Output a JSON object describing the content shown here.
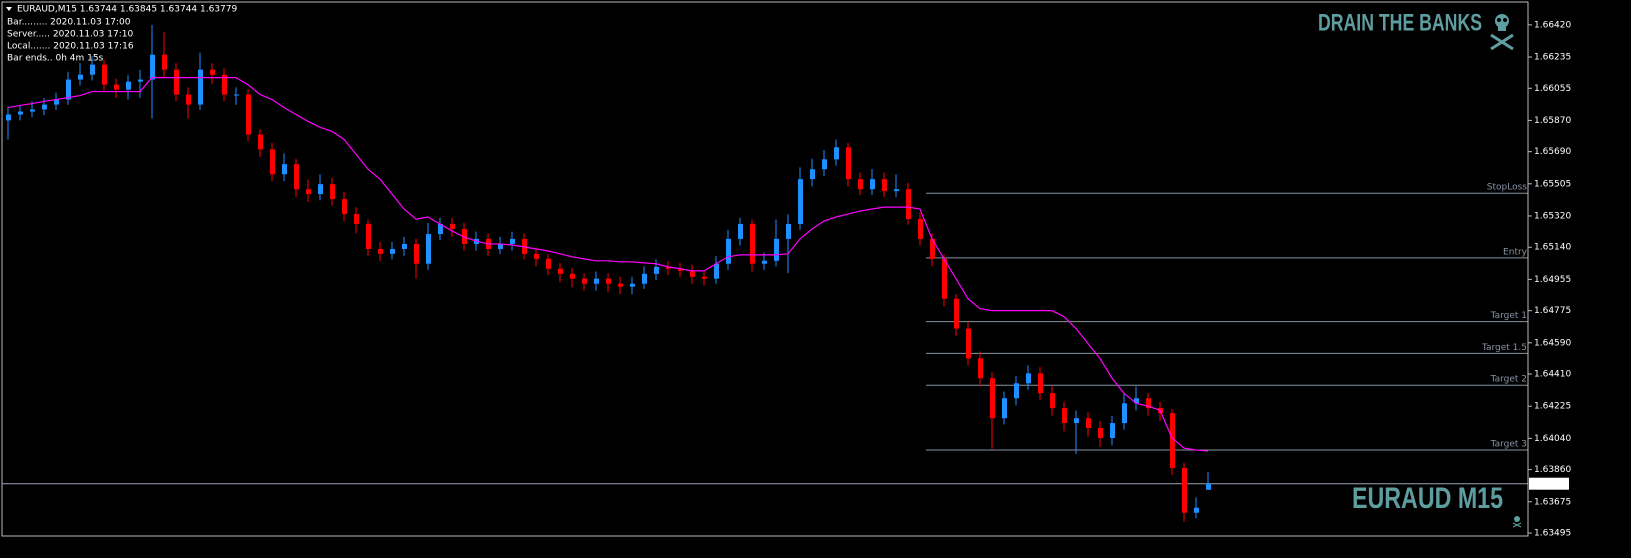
{
  "header": {
    "symbol_line": "EURAUD,M15  1.63744 1.63845 1.63744 1.63779",
    "info": [
      "Bar......... 2020.11.03 17:00",
      "Server..... 2020.11.03 17:10",
      "Local....... 2020.11.03 17:16",
      "Bar ends.. 0h 4m 15s"
    ]
  },
  "watermark": "DRAIN THE BANKS",
  "chart_label": "EURAUD M15",
  "chart_data": {
    "type": "candlestick",
    "ylim": [
      1.63478,
      1.66563
    ],
    "yticks": [
      {
        "value": 1.6642,
        "label": "1.66420"
      },
      {
        "value": 1.66235,
        "label": "1.66235"
      },
      {
        "value": 1.66055,
        "label": "1.66055"
      },
      {
        "value": 1.6587,
        "label": "1.65870"
      },
      {
        "value": 1.6569,
        "label": "1.65690"
      },
      {
        "value": 1.65505,
        "label": "1.65505"
      },
      {
        "value": 1.6532,
        "label": "1.65320"
      },
      {
        "value": 1.6514,
        "label": "1.65140"
      },
      {
        "value": 1.64955,
        "label": "1.64955"
      },
      {
        "value": 1.64775,
        "label": "1.64775"
      },
      {
        "value": 1.6459,
        "label": "1.64590"
      },
      {
        "value": 1.6441,
        "label": "1.64410"
      },
      {
        "value": 1.64225,
        "label": "1.64225"
      },
      {
        "value": 1.6404,
        "label": "1.64040"
      },
      {
        "value": 1.6386,
        "label": "1.63860"
      },
      {
        "value": 1.63675,
        "label": "1.63675"
      },
      {
        "value": 1.63495,
        "label": "1.63495"
      }
    ],
    "up_color": "#1e90ff",
    "down_color": "#ff0000",
    "grid": false,
    "open": [
      1.6587,
      1.65904,
      1.65921,
      1.65933,
      1.65961,
      1.6599,
      1.66105,
      1.66133,
      1.66191,
      1.66076,
      1.66047,
      1.66093,
      1.66105,
      1.66248,
      1.66162,
      1.66019,
      1.65961,
      1.66162,
      1.66133,
      1.66019,
      1.66019,
      1.65789,
      1.65703,
      1.6556,
      1.65618,
      1.65474,
      1.65446,
      1.65503,
      1.65417,
      1.65331,
      1.65274,
      1.6513,
      1.65102,
      1.6513,
      1.65159,
      1.65045,
      1.65216,
      1.65274,
      1.65245,
      1.65159,
      1.65188,
      1.6513,
      1.65159,
      1.65188,
      1.65102,
      1.65073,
      1.65016,
      1.64987,
      1.64959,
      1.6493,
      1.64959,
      1.6493,
      1.64913,
      1.6493,
      1.64987,
      1.65027,
      1.65016,
      1.65004,
      1.6497,
      1.64959,
      1.65045,
      1.65188,
      1.65274,
      1.65045,
      1.65062,
      1.65188,
      1.65274,
      1.65532,
      1.65589,
      1.65646,
      1.65715,
      1.65532,
      1.65474,
      1.65532,
      1.65463,
      1.65474,
      1.65302,
      1.65188,
      1.65073,
      1.64844,
      1.64672,
      1.645,
      1.64386,
      1.64156,
      1.64271,
      1.64357,
      1.64414,
      1.643,
      1.64214,
      1.64128,
      1.64156,
      1.64099,
      1.64042,
      1.64128,
      1.64242,
      1.64271,
      1.64214,
      1.64185,
      1.6387,
      1.63612,
      1.63744
    ],
    "high": [
      1.6595,
      1.6596,
      1.6598,
      1.66,
      1.6603,
      1.6615,
      1.662,
      1.6624,
      1.6622,
      1.6611,
      1.6613,
      1.6616,
      1.6642,
      1.6638,
      1.662,
      1.6606,
      1.6626,
      1.662,
      1.6617,
      1.6606,
      1.6605,
      1.6582,
      1.6574,
      1.6568,
      1.6565,
      1.6553,
      1.6556,
      1.6554,
      1.6546,
      1.6537,
      1.653,
      1.6517,
      1.6517,
      1.652,
      1.6519,
      1.6528,
      1.6531,
      1.6531,
      1.6528,
      1.6523,
      1.6522,
      1.652,
      1.6523,
      1.6522,
      1.6514,
      1.651,
      1.6505,
      1.6502,
      1.6499,
      1.65,
      1.6499,
      1.6497,
      1.6497,
      1.6503,
      1.6507,
      1.6506,
      1.6505,
      1.6504,
      1.65,
      1.6509,
      1.6524,
      1.6531,
      1.653,
      1.6511,
      1.653,
      1.6533,
      1.656,
      1.6565,
      1.657,
      1.6576,
      1.6574,
      1.6557,
      1.6559,
      1.6557,
      1.6556,
      1.6551,
      1.6534,
      1.6522,
      1.651,
      1.6487,
      1.6471,
      1.6454,
      1.6442,
      1.6431,
      1.644,
      1.6446,
      1.6445,
      1.6434,
      1.6425,
      1.642,
      1.6419,
      1.6414,
      1.6417,
      1.643,
      1.6434,
      1.643,
      1.6425,
      1.6421,
      1.639,
      1.637,
      1.63845
    ],
    "low": [
      1.6576,
      1.6587,
      1.6589,
      1.659,
      1.6593,
      1.6596,
      1.6607,
      1.661,
      1.6604,
      1.66,
      1.6599,
      1.66,
      1.6588,
      1.6612,
      1.6598,
      1.6588,
      1.6593,
      1.6608,
      1.6598,
      1.6596,
      1.6575,
      1.6566,
      1.6552,
      1.6552,
      1.6543,
      1.654,
      1.6541,
      1.6538,
      1.6529,
      1.6522,
      1.6509,
      1.6506,
      1.6507,
      1.6509,
      1.6496,
      1.6501,
      1.6518,
      1.652,
      1.6512,
      1.6512,
      1.6509,
      1.651,
      1.6512,
      1.6507,
      1.6503,
      1.6498,
      1.6494,
      1.6491,
      1.6489,
      1.6489,
      1.6488,
      1.6487,
      1.6487,
      1.649,
      1.6495,
      1.6498,
      1.6497,
      1.6493,
      1.6492,
      1.6493,
      1.6501,
      1.6515,
      1.65,
      1.6501,
      1.6503,
      1.6499,
      1.6524,
      1.6549,
      1.6555,
      1.6561,
      1.6549,
      1.6544,
      1.6544,
      1.6543,
      1.6543,
      1.6527,
      1.6515,
      1.6503,
      1.648,
      1.6463,
      1.6446,
      1.6434,
      1.6398,
      1.6412,
      1.6423,
      1.6432,
      1.6426,
      1.6417,
      1.6408,
      1.6395,
      1.6405,
      1.6399,
      1.64,
      1.6409,
      1.642,
      1.6417,
      1.6414,
      1.6383,
      1.6356,
      1.6358,
      1.63744
    ],
    "close": [
      1.65904,
      1.65921,
      1.65933,
      1.65961,
      1.6599,
      1.66105,
      1.66133,
      1.66191,
      1.66076,
      1.66047,
      1.66093,
      1.66105,
      1.66248,
      1.66162,
      1.66019,
      1.65961,
      1.66162,
      1.66133,
      1.66019,
      1.66019,
      1.65789,
      1.65703,
      1.6556,
      1.65618,
      1.65474,
      1.65446,
      1.65503,
      1.65417,
      1.65331,
      1.65274,
      1.6513,
      1.65102,
      1.6513,
      1.65159,
      1.65045,
      1.65216,
      1.65274,
      1.65245,
      1.65159,
      1.65188,
      1.6513,
      1.65159,
      1.65188,
      1.65102,
      1.65073,
      1.65016,
      1.64987,
      1.64959,
      1.6493,
      1.64959,
      1.6493,
      1.64913,
      1.6493,
      1.64987,
      1.65027,
      1.65016,
      1.65004,
      1.6497,
      1.64959,
      1.65045,
      1.65188,
      1.65274,
      1.65045,
      1.65062,
      1.65188,
      1.65274,
      1.65532,
      1.65589,
      1.65646,
      1.65715,
      1.65532,
      1.65474,
      1.65532,
      1.65463,
      1.65474,
      1.65302,
      1.65188,
      1.65073,
      1.64844,
      1.64672,
      1.645,
      1.64386,
      1.64156,
      1.64271,
      1.64357,
      1.64414,
      1.643,
      1.64214,
      1.64128,
      1.64156,
      1.64099,
      1.64042,
      1.64128,
      1.64242,
      1.64271,
      1.64214,
      1.64185,
      1.6387,
      1.63612,
      1.63641,
      1.63779
    ],
    "ma": {
      "color": "#ff00ff",
      "values": [
        1.65944,
        1.65956,
        1.65967,
        1.65979,
        1.6599,
        1.66001,
        1.66013,
        1.66036,
        1.66036,
        1.66036,
        1.66036,
        1.66036,
        1.66116,
        1.66116,
        1.66116,
        1.66116,
        1.66116,
        1.66116,
        1.66116,
        1.66116,
        1.66076,
        1.66019,
        1.6599,
        1.65944,
        1.65904,
        1.65864,
        1.6583,
        1.65807,
        1.65761,
        1.65675,
        1.65589,
        1.65532,
        1.65446,
        1.6536,
        1.65302,
        1.65314,
        1.65274,
        1.65234,
        1.65199,
        1.65176,
        1.65159,
        1.65159,
        1.65153,
        1.65142,
        1.6513,
        1.65119,
        1.65102,
        1.65085,
        1.65073,
        1.65062,
        1.65062,
        1.65056,
        1.65056,
        1.6505,
        1.65045,
        1.65027,
        1.65016,
        1.65004,
        1.65004,
        1.65045,
        1.65085,
        1.65096,
        1.65096,
        1.65096,
        1.65096,
        1.65102,
        1.65188,
        1.65245,
        1.65291,
        1.65314,
        1.65331,
        1.65348,
        1.6536,
        1.65371,
        1.65371,
        1.65371,
        1.6536,
        1.65188,
        1.65073,
        1.64959,
        1.64844,
        1.64787,
        1.64775,
        1.64775,
        1.64775,
        1.64775,
        1.64775,
        1.64775,
        1.64741,
        1.64672,
        1.64586,
        1.645,
        1.64386,
        1.643,
        1.64242,
        1.64225,
        1.64202,
        1.64042,
        1.63984,
        1.63973,
        1.63967
      ]
    },
    "levels": [
      {
        "label": "StopLoss",
        "value": 1.65451
      },
      {
        "label": "Entry",
        "value": 1.65079
      },
      {
        "label": "Target 1",
        "value": 1.64712
      },
      {
        "label": "Target 1.5",
        "value": 1.64529
      },
      {
        "label": "Target 2",
        "value": 1.64346
      },
      {
        "label": "Target 3",
        "value": 1.63973
      }
    ],
    "level_color": "#8795a3",
    "current_price": 1.63779
  }
}
